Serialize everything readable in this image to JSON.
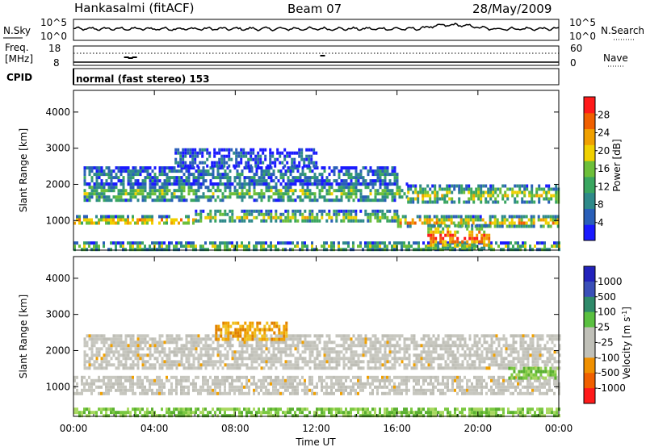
{
  "header": {
    "station": "Hankasalmi (fitACF)",
    "beam": "Beam 07",
    "date": "28/May/2009"
  },
  "noise_panel": {
    "left_label": "N.Sky",
    "right_label": "N.Search",
    "left_ticks": [
      "10^5",
      "10^0"
    ],
    "right_ticks": [
      "10^5",
      "10^0"
    ]
  },
  "freq_panel": {
    "left_label_1": "Freq.",
    "left_label_2": "[MHz]",
    "right_label": "Nave",
    "left_ticks": [
      "18",
      "8"
    ],
    "right_ticks": [
      "60",
      "0"
    ]
  },
  "cpid": {
    "label": "CPID",
    "text": "normal (fast stereo) 153"
  },
  "x_axis": {
    "title": "Time UT",
    "ticks": [
      "00:00",
      "04:00",
      "08:00",
      "12:00",
      "16:00",
      "20:00",
      "00:00"
    ]
  },
  "chart_data": [
    {
      "type": "heatmap",
      "name": "power",
      "ylabel": "Slant Range [km]",
      "y_ticks": [
        1000,
        2000,
        3000,
        4000
      ],
      "ylim": [
        180,
        4600
      ],
      "xlim_hours": [
        0,
        24
      ],
      "colorbar": {
        "label": "Power [dB]",
        "ticks": [
          4,
          8,
          12,
          16,
          20,
          24,
          28
        ],
        "range": [
          0,
          32
        ],
        "colors": [
          "#1a1aff",
          "#2a5fb8",
          "#2f8a8a",
          "#3aa660",
          "#6dbf3a",
          "#f0d000",
          "#f0a000",
          "#f06000",
          "#ff1a1a"
        ]
      },
      "bands": [
        {
          "t0": 0.0,
          "t1": 24.0,
          "r0": 200,
          "r1": 420,
          "level": 0.55
        },
        {
          "t0": 0.0,
          "t1": 6.0,
          "r0": 900,
          "r1": 1150,
          "level": 0.8
        },
        {
          "t0": 6.0,
          "t1": 16.0,
          "r0": 950,
          "r1": 1300,
          "level": 0.55
        },
        {
          "t0": 16.0,
          "t1": 24.0,
          "r0": 850,
          "r1": 1150,
          "level": 0.75
        },
        {
          "t0": 0.5,
          "t1": 16.5,
          "r0": 1550,
          "r1": 2050,
          "level": 0.5
        },
        {
          "t0": 16.5,
          "t1": 24.0,
          "r0": 1500,
          "r1": 2000,
          "level": 0.6
        },
        {
          "t0": 0.5,
          "t1": 16.0,
          "r0": 2050,
          "r1": 2500,
          "level": 0.3
        },
        {
          "t0": 17.5,
          "t1": 20.5,
          "r0": 250,
          "r1": 900,
          "level": 0.95
        },
        {
          "t0": 5.0,
          "t1": 12.0,
          "r0": 2500,
          "r1": 3000,
          "level": 0.2
        }
      ]
    },
    {
      "type": "heatmap",
      "name": "velocity",
      "ylabel": "Slant Range [km]",
      "y_ticks": [
        1000,
        2000,
        3000,
        4000
      ],
      "ylim": [
        180,
        4600
      ],
      "xlim_hours": [
        0,
        24
      ],
      "colorbar": {
        "label": "Velocity [m s^-1]",
        "ticks": [
          "1000",
          "500",
          "100",
          "25",
          "-25",
          "-100",
          "-500",
          "-1000"
        ],
        "colors": [
          "#2222bb",
          "#3a4fb8",
          "#2f8a6a",
          "#5ac040",
          "#c0c0b8",
          "#c0c0b8",
          "#f09000",
          "#f06000",
          "#ff1a1a"
        ]
      },
      "bands": [
        {
          "t0": 0.0,
          "t1": 24.0,
          "r0": 200,
          "r1": 420,
          "class": "green"
        },
        {
          "t0": 0.0,
          "t1": 24.0,
          "r0": 850,
          "r1": 1300,
          "class": "grey"
        },
        {
          "t0": 0.5,
          "t1": 24.0,
          "r0": 1500,
          "r1": 2450,
          "class": "grey"
        },
        {
          "t0": 7.0,
          "t1": 10.5,
          "r0": 2300,
          "r1": 2800,
          "class": "orange"
        },
        {
          "t0": 21.5,
          "t1": 24.0,
          "r0": 1200,
          "r1": 1550,
          "class": "green"
        }
      ]
    }
  ]
}
